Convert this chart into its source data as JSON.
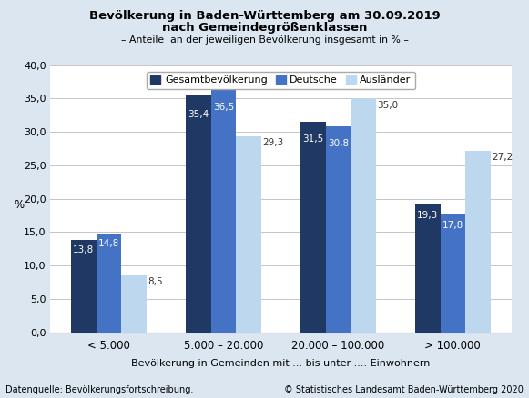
{
  "title_line1": "Bevölkerung in Baden-Württemberg am 30.09.2019",
  "title_line2": "nach Gemeindegrößenklassen",
  "subtitle": "– Anteile  an der jeweiligen Bevölkerung insgesamt in % –",
  "ylabel": "%",
  "xlabel": "Bevölkerung in Gemeinden mit ... bis unter .... Einwohnern",
  "categories": [
    "< 5.000",
    "5.000 – 20.000",
    "20.000 – 100.000",
    "> 100.000"
  ],
  "series": {
    "Gesamtbevölkerung": [
      13.8,
      35.4,
      31.5,
      19.3
    ],
    "Deutsche": [
      14.8,
      36.5,
      30.8,
      17.8
    ],
    "Ausländer": [
      8.5,
      29.3,
      35.0,
      27.2
    ]
  },
  "colors": {
    "Gesamtbevölkerung": "#1f3864",
    "Deutsche": "#4472c4",
    "Ausländer": "#bdd7ee"
  },
  "bar_label_colors": {
    "Gesamtbevölkerung": "#ffffff",
    "Deutsche": "#ffffff",
    "Ausländer": "#404040"
  },
  "ylim": [
    0,
    40
  ],
  "yticks": [
    0.0,
    5.0,
    10.0,
    15.0,
    20.0,
    25.0,
    30.0,
    35.0,
    40.0
  ],
  "ytick_labels": [
    "0,0",
    "5,0",
    "10,0",
    "15,0",
    "20,0",
    "25,0",
    "30,0",
    "35,0",
    "40,0"
  ],
  "outer_bg": "#dce6f1",
  "plot_bg": "#ffffff",
  "footer_left": "Datenquelle: Bevölkerungsfortschreibung.",
  "footer_right": "© Statistisches Landesamt Baden-Württemberg 2020",
  "bar_width": 0.22
}
